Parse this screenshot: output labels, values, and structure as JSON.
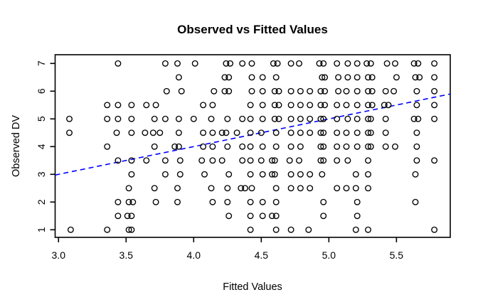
{
  "title": "Observed vs Fitted Values",
  "chart_data": {
    "type": "scatter",
    "title": "Observed vs Fitted Values",
    "xlabel": "Fitted Values",
    "ylabel": "Observed DV",
    "xlim": [
      2.975,
      5.898
    ],
    "ylim": [
      0.726,
      7.315
    ],
    "xticks": [
      "3.0",
      "3.5",
      "4.0",
      "4.5",
      "5.0",
      "5.5"
    ],
    "xtick_values": [
      3.0,
      3.5,
      4.0,
      4.5,
      5.0,
      5.5
    ],
    "yticks": [
      "1",
      "2",
      "3",
      "4",
      "5",
      "6",
      "7"
    ],
    "ytick_values": [
      1,
      2,
      3,
      4,
      5,
      6,
      7
    ],
    "grid": false,
    "legend": "none",
    "marker": "open-circle",
    "marker_color": "#000000",
    "reference_line": {
      "name": "identity-line",
      "style": "dashed",
      "color": "#0000ff",
      "x": [
        2.975,
        5.898
      ],
      "y": [
        2.975,
        5.898
      ]
    },
    "points_by_y": {
      "7": [
        3.44,
        3.79,
        3.88,
        4.01,
        4.24,
        4.27,
        4.36,
        4.43,
        4.59,
        4.62,
        4.72,
        4.78,
        4.93,
        4.96,
        5.06,
        5.14,
        5.21,
        5.28,
        5.31,
        5.43,
        5.49,
        5.63,
        5.66,
        5.78
      ],
      "6.5": [
        3.89,
        4.23,
        4.26,
        4.43,
        4.51,
        4.61,
        4.95,
        4.97,
        5.07,
        5.14,
        5.21,
        5.29,
        5.32,
        5.5,
        5.64,
        5.67,
        5.78
      ],
      "6": [
        3.8,
        3.91,
        4.15,
        4.23,
        4.26,
        4.43,
        4.51,
        4.6,
        4.63,
        4.72,
        4.79,
        4.86,
        4.94,
        4.97,
        5.07,
        5.13,
        5.21,
        5.29,
        5.32,
        5.42,
        5.48,
        5.65,
        5.78
      ],
      "5.5": [
        3.36,
        3.44,
        3.54,
        3.65,
        3.72,
        4.07,
        4.14,
        4.42,
        4.51,
        4.6,
        4.63,
        4.72,
        4.79,
        4.86,
        4.94,
        4.97,
        5.06,
        5.13,
        5.21,
        5.29,
        5.32,
        5.41,
        5.44,
        5.65,
        5.78
      ],
      "5": [
        3.08,
        3.36,
        3.44,
        3.54,
        3.71,
        3.79,
        3.89,
        4.0,
        4.13,
        4.25,
        4.36,
        4.42,
        4.51,
        4.6,
        4.63,
        4.72,
        4.79,
        4.86,
        4.94,
        4.96,
        5.06,
        5.14,
        5.21,
        5.29,
        5.31,
        5.42,
        5.63,
        5.66,
        5.78
      ],
      "4.5": [
        3.08,
        3.43,
        3.54,
        3.64,
        3.7,
        3.75,
        3.89,
        4.07,
        4.14,
        4.21,
        4.24,
        4.32,
        4.42,
        4.5,
        4.61,
        4.72,
        4.79,
        4.86,
        4.94,
        4.96,
        5.06,
        5.13,
        5.21,
        5.29,
        5.31,
        5.42,
        5.65
      ],
      "4": [
        3.36,
        3.71,
        3.86,
        3.89,
        4.07,
        4.14,
        4.25,
        4.36,
        4.42,
        4.51,
        4.61,
        4.72,
        4.79,
        4.94,
        4.96,
        5.06,
        5.13,
        5.21,
        5.29,
        5.31,
        5.42,
        5.49,
        5.65
      ],
      "3.5": [
        3.44,
        3.54,
        3.65,
        3.79,
        3.9,
        4.06,
        4.14,
        4.21,
        4.36,
        4.42,
        4.5,
        4.58,
        4.6,
        4.71,
        4.78,
        4.94,
        4.96,
        5.06,
        5.14,
        5.29,
        5.65,
        5.78
      ],
      "3": [
        3.54,
        3.79,
        3.9,
        4.08,
        4.26,
        4.42,
        4.51,
        4.58,
        4.6,
        4.72,
        4.79,
        4.86,
        4.95,
        5.2,
        5.29,
        5.64
      ],
      "2.5": [
        3.52,
        3.71,
        3.88,
        4.13,
        4.25,
        4.35,
        4.38,
        4.43,
        4.61,
        4.72,
        4.79,
        4.86,
        5.06,
        5.13,
        5.2,
        5.29
      ],
      "2": [
        3.44,
        3.52,
        3.55,
        3.72,
        3.88,
        4.14,
        4.25,
        4.42,
        4.51,
        4.61,
        4.96,
        5.21,
        5.64
      ],
      "1.5": [
        3.44,
        3.51,
        3.54,
        4.26,
        4.42,
        4.51,
        4.58,
        4.61,
        4.96,
        5.21
      ],
      "1": [
        3.09,
        3.36,
        3.52,
        3.54,
        4.42,
        4.61,
        4.72,
        4.85,
        5.2,
        5.29,
        5.78
      ]
    }
  }
}
